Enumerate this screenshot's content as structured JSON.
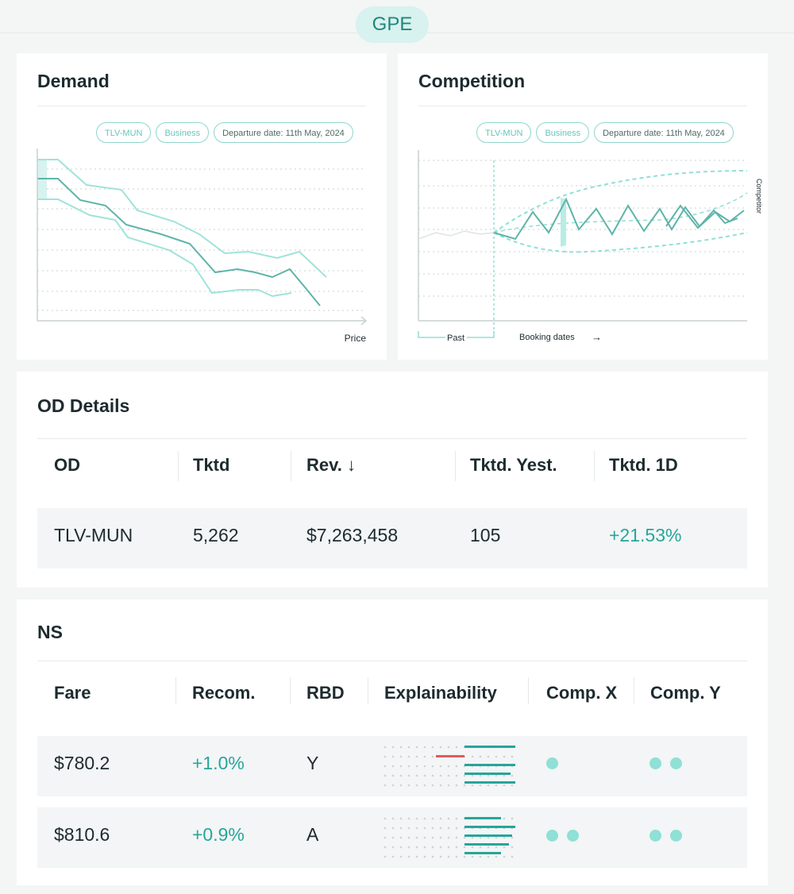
{
  "header": {
    "badge": "GPE"
  },
  "demand": {
    "title": "Demand",
    "chips": [
      "TLV-MUN",
      "Business",
      "Departure date: 11th May, 2024"
    ],
    "x_axis_label": "Price"
  },
  "competition": {
    "title": "Competition",
    "chips": [
      "TLV-MUN",
      "Business",
      "Departure date: 11th May, 2024"
    ],
    "past_label": "Past",
    "booking_label": "Booking dates",
    "right_axis_label": "Competitor"
  },
  "od_details": {
    "title": "OD Details",
    "columns": [
      "OD",
      "Tktd",
      "Rev. ↓",
      "Tktd. Yest.",
      "Tktd. 1D"
    ],
    "rows": [
      {
        "od": "TLV-MUN",
        "tktd": "5,262",
        "rev": "$7,263,458",
        "tktd_yest": "105",
        "tktd_1d": "+21.53%"
      }
    ]
  },
  "ns": {
    "title": "NS",
    "columns": [
      "Fare",
      "Recom.",
      "RBD",
      "Explainability",
      "Comp. X",
      "Comp. Y"
    ],
    "rows": [
      {
        "fare": "$780.2",
        "recom": "+1.0%",
        "rbd": "Y",
        "comp_x_dots": 1,
        "comp_y_dots": 2
      },
      {
        "fare": "$810.6",
        "recom": "+0.9%",
        "rbd": "A",
        "comp_x_dots": 2,
        "comp_y_dots": 2
      }
    ]
  },
  "colors": {
    "accent": "#26a69a",
    "chip_border": "#8fd6cc",
    "line_main": "#5fb3aa",
    "band": "#a6e6de",
    "negative": "#e15b5b",
    "background": "#f4f5f5"
  }
}
